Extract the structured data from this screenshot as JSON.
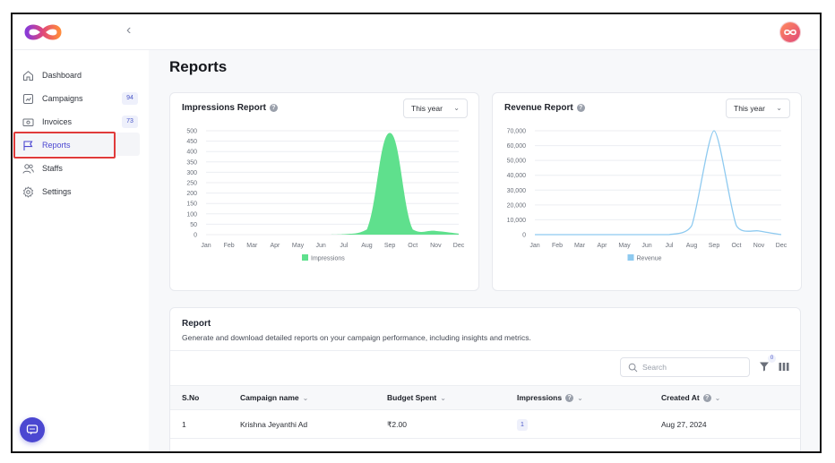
{
  "sidebar": {
    "items": [
      {
        "label": "Dashboard",
        "icon": "home-icon"
      },
      {
        "label": "Campaigns",
        "icon": "campaigns-icon",
        "badge": "94"
      },
      {
        "label": "Invoices",
        "icon": "invoice-icon",
        "badge": "73"
      },
      {
        "label": "Reports",
        "icon": "flag-icon",
        "active": true
      },
      {
        "label": "Staffs",
        "icon": "users-icon"
      },
      {
        "label": "Settings",
        "icon": "gear-icon"
      }
    ]
  },
  "page": {
    "title": "Reports"
  },
  "impressions_card": {
    "title": "Impressions Report",
    "period": "This year"
  },
  "revenue_card": {
    "title": "Revenue Report",
    "period": "This year"
  },
  "report": {
    "title": "Report",
    "subtitle": "Generate and download detailed reports on your campaign performance, including insights and metrics.",
    "search_placeholder": "Search",
    "filter_count": "0",
    "columns": [
      "S.No",
      "Campaign name",
      "Budget Spent",
      "Impressions",
      "Created At"
    ],
    "rows": [
      {
        "sno": "1",
        "campaign": "Krishna Jeyanthi Ad",
        "budget": "₹2.00",
        "impressions": "1",
        "created": "Aug 27, 2024"
      }
    ]
  },
  "colors": {
    "accent": "#4b47d1",
    "impressions": "#5fe08d",
    "revenue": "#8ecaf0",
    "highlight_box": "#e03b3b"
  },
  "chart_data": [
    {
      "type": "area",
      "title": "Impressions Report",
      "categories": [
        "Jan",
        "Feb",
        "Mar",
        "Apr",
        "May",
        "Jun",
        "Jul",
        "Aug",
        "Sep",
        "Oct",
        "Nov",
        "Dec"
      ],
      "series": [
        {
          "name": "Impressions",
          "values": [
            0,
            0,
            0,
            0,
            0,
            0,
            2,
            25,
            490,
            25,
            18,
            5
          ]
        }
      ],
      "yticks": [
        "0",
        "50",
        "100",
        "150",
        "200",
        "250",
        "300",
        "350",
        "400",
        "450",
        "500"
      ],
      "ylim": [
        0,
        500
      ],
      "legend": "Impressions",
      "color": "#5fe08d"
    },
    {
      "type": "line",
      "title": "Revenue Report",
      "categories": [
        "Jan",
        "Feb",
        "Mar",
        "Apr",
        "May",
        "Jun",
        "Jul",
        "Aug",
        "Sep",
        "Oct",
        "Nov",
        "Dec"
      ],
      "series": [
        {
          "name": "Revenue",
          "values": [
            0,
            0,
            0,
            0,
            0,
            0,
            0,
            6000,
            70000,
            6000,
            2500,
            0
          ]
        }
      ],
      "yticks": [
        "0",
        "10,000",
        "20,000",
        "30,000",
        "40,000",
        "50,000",
        "60,000",
        "70,000"
      ],
      "ylim": [
        0,
        70000
      ],
      "legend": "Revenue",
      "color": "#8ecaf0"
    }
  ]
}
